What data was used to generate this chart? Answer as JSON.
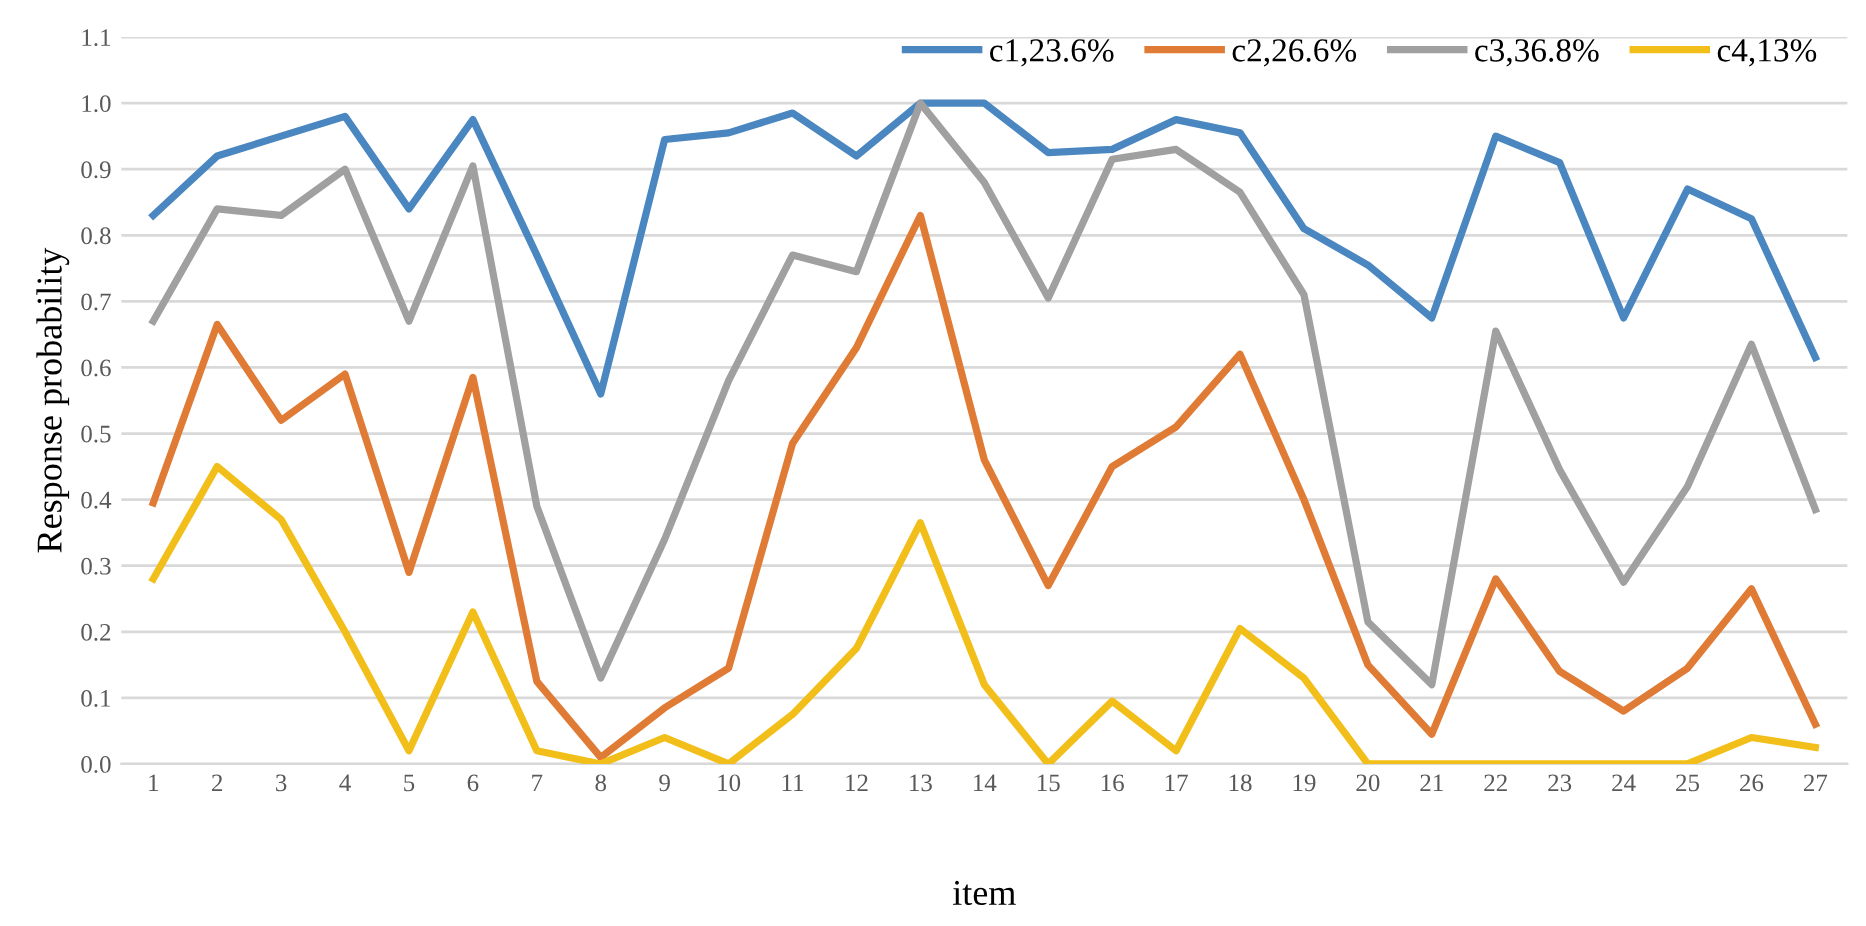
{
  "chart_data": {
    "type": "line",
    "xlabel": "item",
    "ylabel": "Response probability",
    "categories": [
      "1",
      "2",
      "3",
      "4",
      "5",
      "6",
      "7",
      "8",
      "9",
      "10",
      "11",
      "12",
      "13",
      "14",
      "15",
      "16",
      "17",
      "18",
      "19",
      "20",
      "21",
      "22",
      "23",
      "24",
      "25",
      "26",
      "27"
    ],
    "series": [
      {
        "name": "c1,23.6%",
        "color": "#4a86c0",
        "values": [
          0.83,
          0.92,
          0.95,
          0.98,
          0.84,
          0.975,
          0.77,
          0.56,
          0.945,
          0.955,
          0.985,
          0.92,
          1.0,
          1.0,
          0.925,
          0.93,
          0.975,
          0.955,
          0.81,
          0.755,
          0.675,
          0.95,
          0.91,
          0.675,
          0.87,
          0.825,
          0.615
        ]
      },
      {
        "name": "c2,26.6%",
        "color": "#e07b35",
        "values": [
          0.395,
          0.665,
          0.52,
          0.59,
          0.29,
          0.585,
          0.125,
          0.01,
          0.085,
          0.145,
          0.485,
          0.63,
          0.83,
          0.46,
          0.27,
          0.45,
          0.51,
          0.62,
          0.4,
          0.15,
          0.045,
          0.28,
          0.14,
          0.08,
          0.145,
          0.265,
          0.06
        ]
      },
      {
        "name": "c3,36.8%",
        "color": "#a0a0a0",
        "values": [
          0.67,
          0.84,
          0.83,
          0.9,
          0.67,
          0.905,
          0.39,
          0.13,
          0.34,
          0.58,
          0.77,
          0.745,
          1.0,
          0.88,
          0.705,
          0.915,
          0.93,
          0.865,
          0.71,
          0.215,
          0.12,
          0.655,
          0.445,
          0.275,
          0.42,
          0.635,
          0.385
        ]
      },
      {
        "name": "c4,13%",
        "color": "#f2bf1a",
        "values": [
          0.28,
          0.45,
          0.37,
          0.2,
          0.02,
          0.23,
          0.02,
          0.0,
          0.04,
          0.0,
          0.075,
          0.175,
          0.365,
          0.12,
          0.0,
          0.095,
          0.02,
          0.205,
          0.13,
          0.0,
          0.0,
          0.0,
          0.0,
          0.0,
          0.0,
          0.04,
          0.025
        ]
      }
    ],
    "ylim": [
      0,
      1.1
    ],
    "yticks": [
      {
        "value": 0,
        "label": "0.0"
      },
      {
        "value": 0.1,
        "label": "0.1"
      },
      {
        "value": 0.2,
        "label": "0.2"
      },
      {
        "value": 0.3,
        "label": "0.3"
      },
      {
        "value": 0.4,
        "label": "0.4"
      },
      {
        "value": 0.5,
        "label": "0.5"
      },
      {
        "value": 0.6,
        "label": "0.6"
      },
      {
        "value": 0.7,
        "label": "0.7"
      },
      {
        "value": 0.8,
        "label": "0.8"
      },
      {
        "value": 0.9,
        "label": "0.9"
      },
      {
        "value": 1.0,
        "label": "1.0"
      },
      {
        "value": 1.1,
        "label": "1.1"
      }
    ],
    "grid": "y",
    "legend": "top right",
    "marker": "none",
    "line_style": "solid"
  }
}
